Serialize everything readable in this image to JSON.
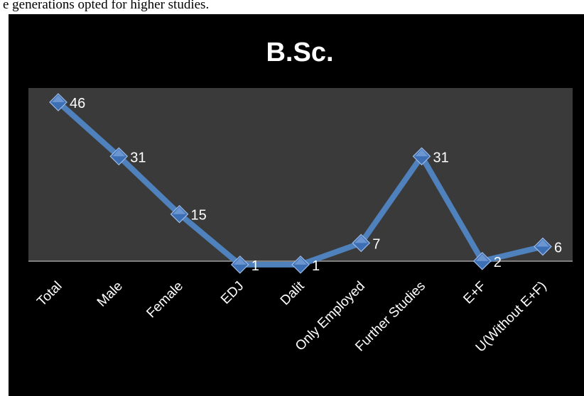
{
  "caption": "e generations opted for higher studies.",
  "colors": {
    "chart_background": "#000000",
    "plot_area": "#3a3a3a",
    "line": "#4f81bd",
    "marker": "#3d6fb5",
    "text": "#ffffff"
  },
  "chart_data": {
    "type": "line",
    "title": "B.Sc.",
    "xlabel": "",
    "ylabel": "",
    "categories": [
      "Total",
      "Male",
      "Female",
      "EDJ",
      "Dalit",
      "Only Employed",
      "Further Studies",
      "E+F",
      "U(Without E+F)"
    ],
    "series": [
      {
        "values": [
          46,
          31,
          15,
          1,
          1,
          7,
          31,
          2,
          6
        ]
      }
    ],
    "data_labels": [
      "46",
      "31",
      "15",
      "1",
      "1",
      "7",
      "31",
      "2",
      "6"
    ],
    "marker": "diamond",
    "grid": false,
    "legend": "none"
  }
}
